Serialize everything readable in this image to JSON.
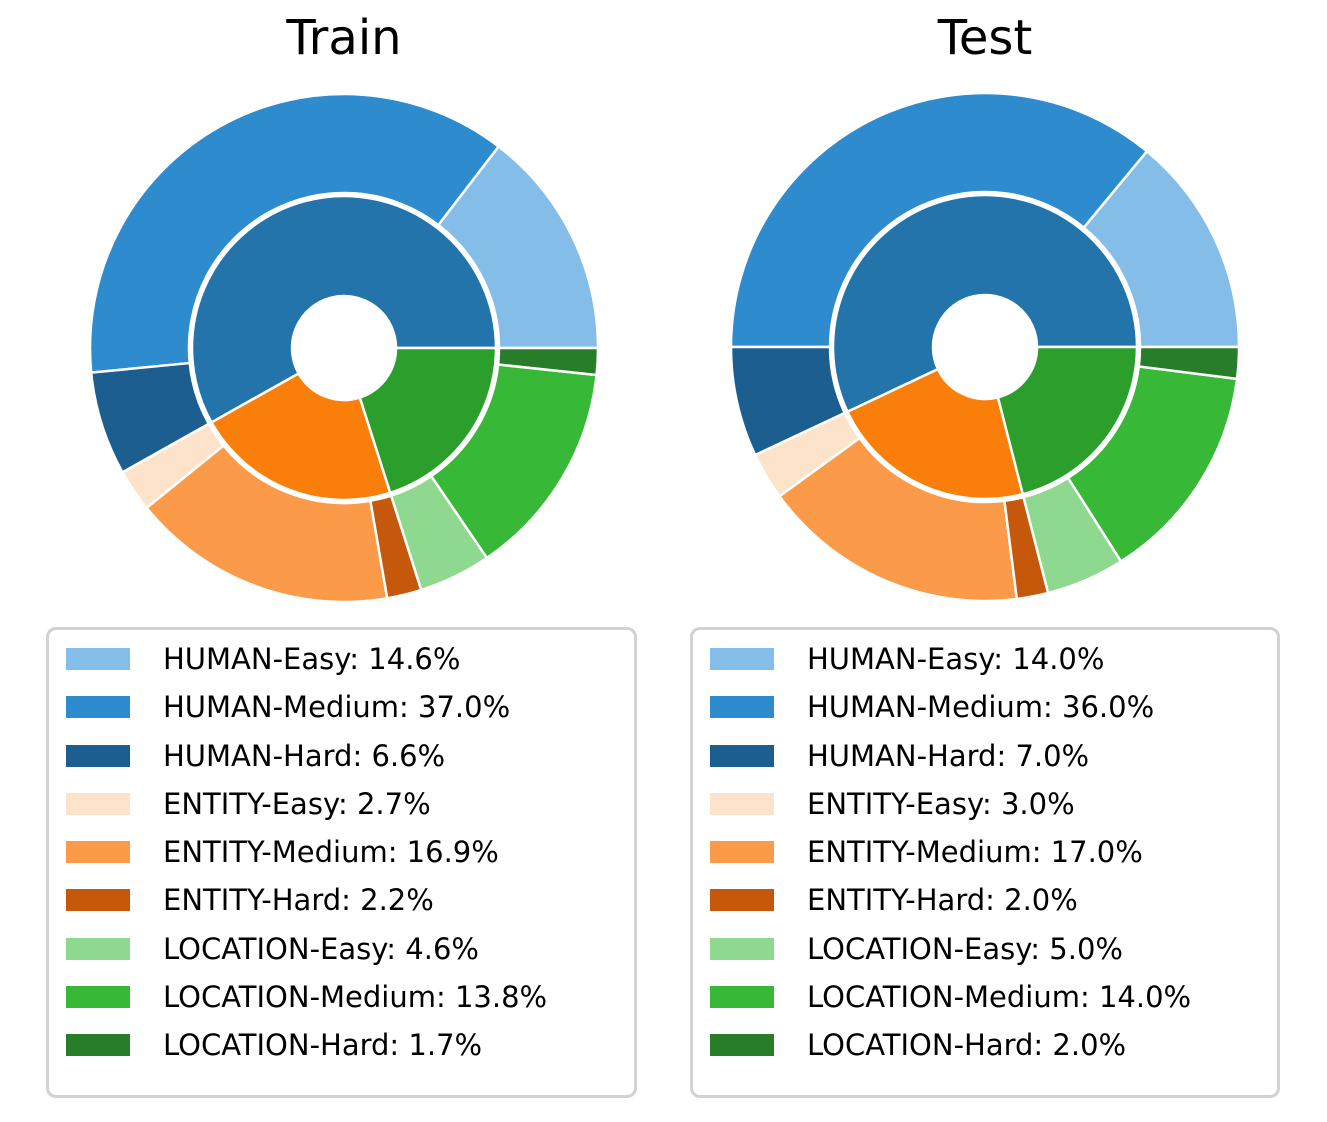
{
  "figure": {
    "background": "#ffffff",
    "wedge_edge_color": "#ffffff"
  },
  "chart_data": [
    {
      "type": "pie",
      "variant": "nested-donut",
      "title": "Train",
      "start_angle": 0,
      "direction": "counterclockwise",
      "legend_position": "below",
      "rings": {
        "inner": {
          "labels": [
            "HUMAN",
            "ENTITY",
            "LOCATION"
          ],
          "values": [
            58.2,
            21.8,
            20.1
          ],
          "colors": [
            "#2274ab",
            "#fa7e0a",
            "#2c9e2c"
          ]
        },
        "outer": {
          "labels": [
            "HUMAN-Easy",
            "HUMAN-Medium",
            "HUMAN-Hard",
            "ENTITY-Easy",
            "ENTITY-Medium",
            "ENTITY-Hard",
            "LOCATION-Easy",
            "LOCATION-Medium",
            "LOCATION-Hard"
          ],
          "values": [
            14.6,
            37.0,
            6.6,
            2.7,
            16.9,
            2.2,
            4.6,
            13.8,
            1.7
          ],
          "colors": [
            "#83bde8",
            "#2e8bce",
            "#1c5e90",
            "#fce3c9",
            "#fb9a49",
            "#c6580c",
            "#8fd88f",
            "#37b837",
            "#287d28"
          ]
        }
      },
      "legend_labels": [
        "HUMAN-Easy: 14.6%",
        "HUMAN-Medium: 37.0%",
        "HUMAN-Hard: 6.6%",
        "ENTITY-Easy: 2.7%",
        "ENTITY-Medium: 16.9%",
        "ENTITY-Hard: 2.2%",
        "LOCATION-Easy: 4.6%",
        "LOCATION-Medium: 13.8%",
        "LOCATION-Hard: 1.7%"
      ]
    },
    {
      "type": "pie",
      "variant": "nested-donut",
      "title": "Test",
      "start_angle": 0,
      "direction": "counterclockwise",
      "legend_position": "below",
      "rings": {
        "inner": {
          "labels": [
            "HUMAN",
            "ENTITY",
            "LOCATION"
          ],
          "values": [
            57.0,
            22.0,
            21.0
          ],
          "colors": [
            "#2274ab",
            "#fa7e0a",
            "#2c9e2c"
          ]
        },
        "outer": {
          "labels": [
            "HUMAN-Easy",
            "HUMAN-Medium",
            "HUMAN-Hard",
            "ENTITY-Easy",
            "ENTITY-Medium",
            "ENTITY-Hard",
            "LOCATION-Easy",
            "LOCATION-Medium",
            "LOCATION-Hard"
          ],
          "values": [
            14.0,
            36.0,
            7.0,
            3.0,
            17.0,
            2.0,
            5.0,
            14.0,
            2.0
          ],
          "colors": [
            "#83bde8",
            "#2e8bce",
            "#1c5e90",
            "#fce3c9",
            "#fb9a49",
            "#c6580c",
            "#8fd88f",
            "#37b837",
            "#287d28"
          ]
        }
      },
      "legend_labels": [
        "HUMAN-Easy: 14.0%",
        "HUMAN-Medium: 36.0%",
        "HUMAN-Hard: 7.0%",
        "ENTITY-Easy: 3.0%",
        "ENTITY-Medium: 17.0%",
        "ENTITY-Hard: 2.0%",
        "LOCATION-Easy: 5.0%",
        "LOCATION-Medium: 14.0%",
        "LOCATION-Hard: 2.0%"
      ]
    }
  ]
}
